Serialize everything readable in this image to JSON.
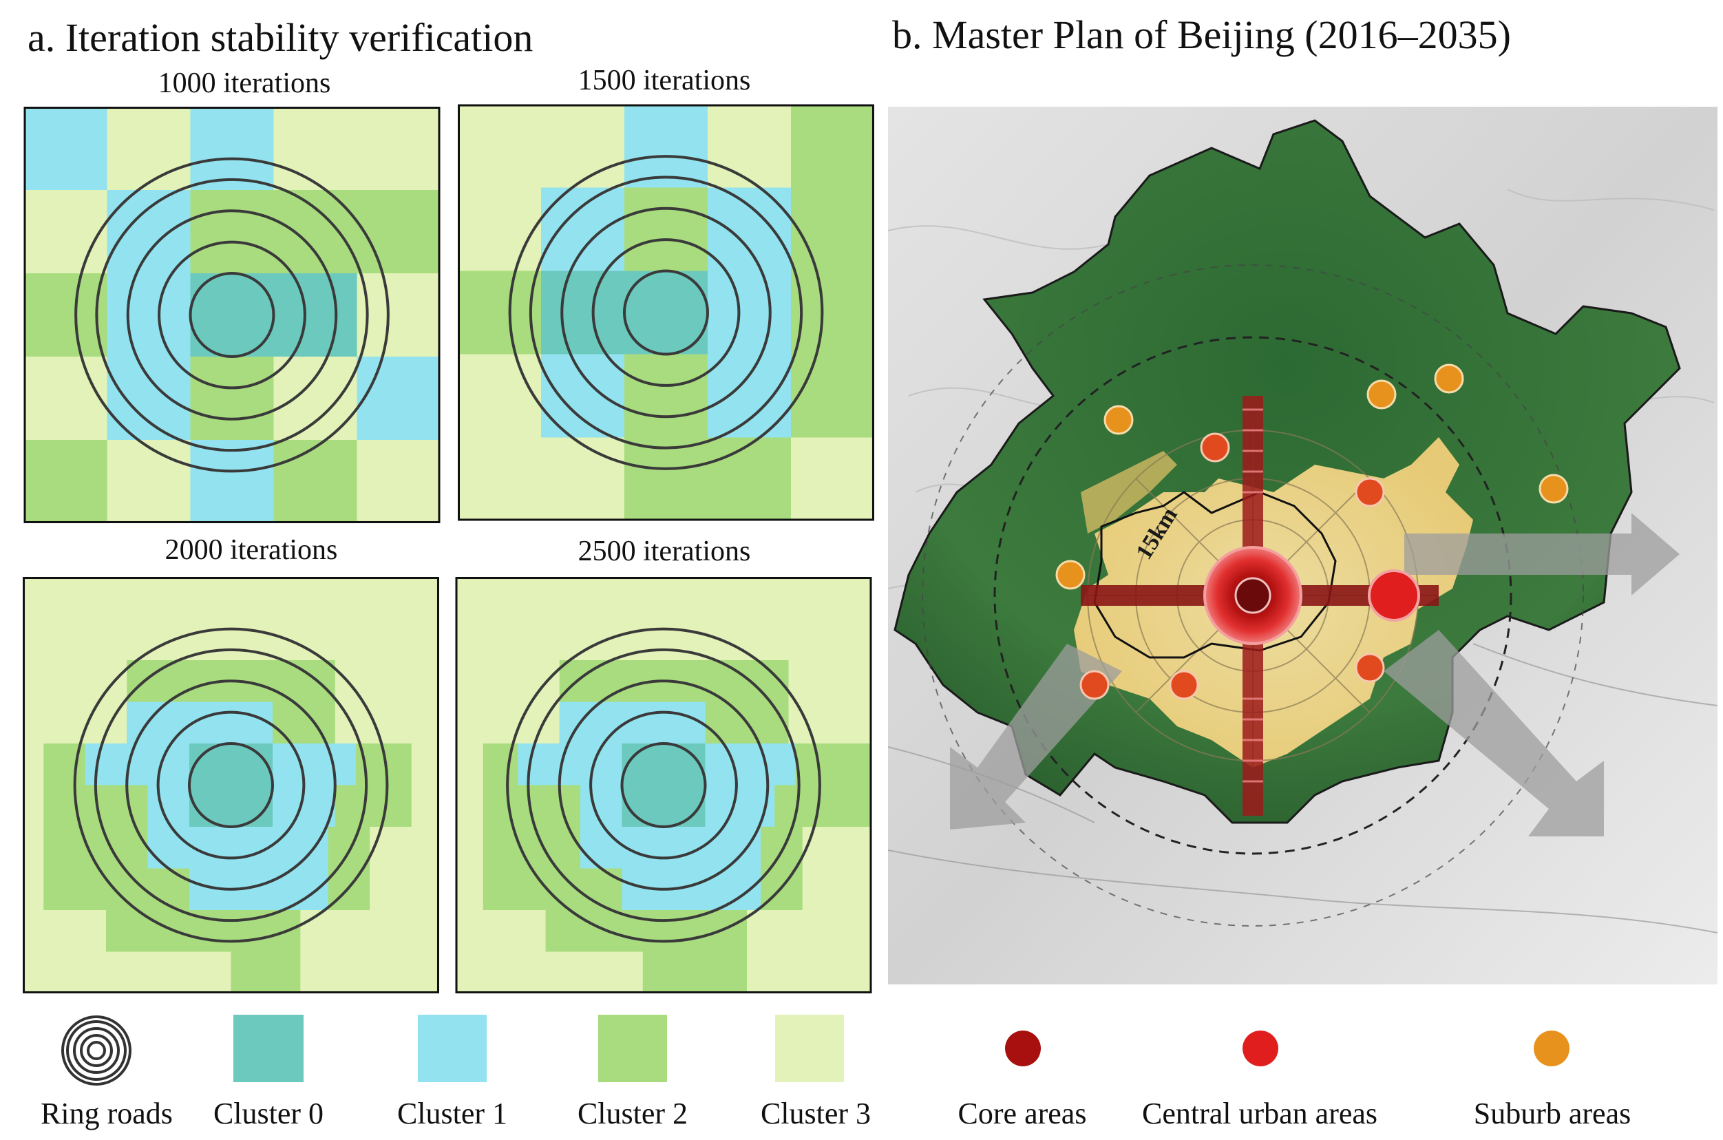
{
  "panel_a": {
    "title": "a. Iteration stability verification",
    "grids": [
      {
        "label": "1000 iterations"
      },
      {
        "label": "1500 iterations"
      },
      {
        "label": "2000 iterations"
      },
      {
        "label": "2500 iterations"
      }
    ]
  },
  "panel_b": {
    "title": "b. Master Plan of Beijing (2016–2035)",
    "map_label_radius": "15km"
  },
  "legend": {
    "items": [
      {
        "label": "Ring roads"
      },
      {
        "label": "Cluster 0",
        "color": "#6cc9be"
      },
      {
        "label": "Cluster 1",
        "color": "#92e3ef"
      },
      {
        "label": "Cluster 2",
        "color": "#a8dc7e"
      },
      {
        "label": "Cluster 3",
        "color": "#e2f2b8"
      },
      {
        "label": "Core areas",
        "color": "#a80f0f"
      },
      {
        "label": "Central urban areas",
        "color": "#e01e1e"
      },
      {
        "label": "Suburb areas",
        "color": "#e8921e"
      }
    ]
  },
  "colors": {
    "cluster0": "#6cc9be",
    "cluster1": "#92e3ef",
    "cluster2": "#a8dc7e",
    "cluster3": "#e2f2b8",
    "ring": "#3a3a3a",
    "forest": "#2f6e35",
    "urban": "#f3d98a"
  }
}
